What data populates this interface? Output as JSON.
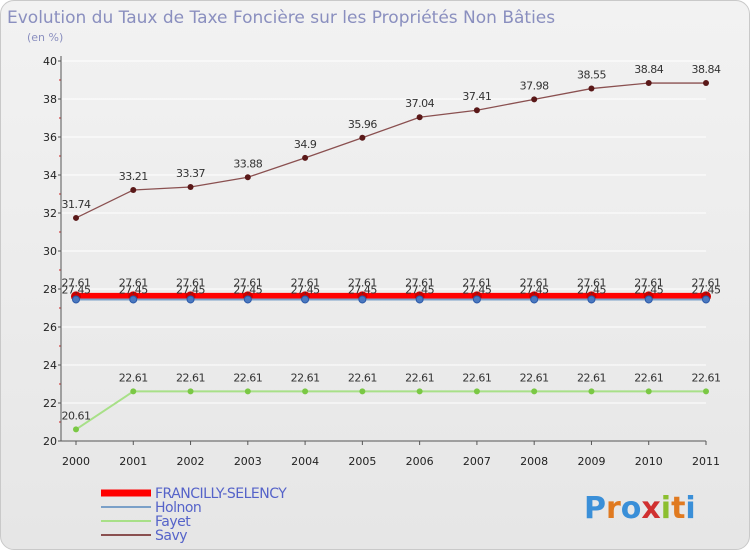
{
  "chart_data": {
    "type": "line",
    "title": "Evolution du Taux de Taxe Foncière sur les Propriétés Non Bâties",
    "subtitle": "(en %)",
    "xlabel": "",
    "ylabel": "(en %)",
    "x": [
      "2000",
      "2001",
      "2002",
      "2003",
      "2004",
      "2005",
      "2006",
      "2007",
      "2008",
      "2009",
      "2010",
      "2011"
    ],
    "ylim": [
      20,
      40
    ],
    "yticks": [
      "20",
      "22",
      "24",
      "26",
      "28",
      "30",
      "32",
      "34",
      "36",
      "38",
      "40"
    ],
    "grid": "horizontal",
    "legend_position": "bottom-left",
    "series": [
      {
        "name": "FRANCILLY-SELENCY",
        "color": "#ff0000",
        "marker": "#cc0000",
        "values": [
          27.61,
          27.61,
          27.61,
          27.61,
          27.61,
          27.61,
          27.61,
          27.61,
          27.61,
          27.61,
          27.61,
          27.61
        ],
        "labels": [
          "27.61",
          "27.61",
          "27.61",
          "27.61",
          "27.61",
          "27.61",
          "27.61",
          "27.61",
          "27.61",
          "27.61",
          "27.61",
          "27.61"
        ]
      },
      {
        "name": "Holnon",
        "color": "#7aa0c8",
        "marker": "#4a78c0",
        "values": [
          27.45,
          27.45,
          27.45,
          27.45,
          27.45,
          27.45,
          27.45,
          27.45,
          27.45,
          27.45,
          27.45,
          27.45
        ],
        "labels": [
          "27.45",
          "27.45",
          "27.45",
          "27.45",
          "27.45",
          "27.45",
          "27.45",
          "27.45",
          "27.45",
          "27.45",
          "27.45",
          "27.45"
        ]
      },
      {
        "name": "Fayet",
        "color": "#a8e088",
        "marker": "#7ac844",
        "values": [
          20.61,
          22.61,
          22.61,
          22.61,
          22.61,
          22.61,
          22.61,
          22.61,
          22.61,
          22.61,
          22.61,
          22.61
        ],
        "labels": [
          "20.61",
          "22.61",
          "22.61",
          "22.61",
          "22.61",
          "22.61",
          "22.61",
          "22.61",
          "22.61",
          "22.61",
          "22.61",
          "22.61"
        ]
      },
      {
        "name": "Savy",
        "color": "#8a5050",
        "marker": "#5a1818",
        "values": [
          31.74,
          33.21,
          33.37,
          33.88,
          34.9,
          35.96,
          37.04,
          37.41,
          37.98,
          38.55,
          38.84,
          38.84
        ],
        "labels": [
          "31.74",
          "33.21",
          "33.37",
          "33.88",
          "34.9",
          "35.96",
          "37.04",
          "37.41",
          "37.98",
          "38.55",
          "38.84",
          "38.84"
        ]
      }
    ]
  },
  "logo": {
    "text": "Proxiti"
  }
}
